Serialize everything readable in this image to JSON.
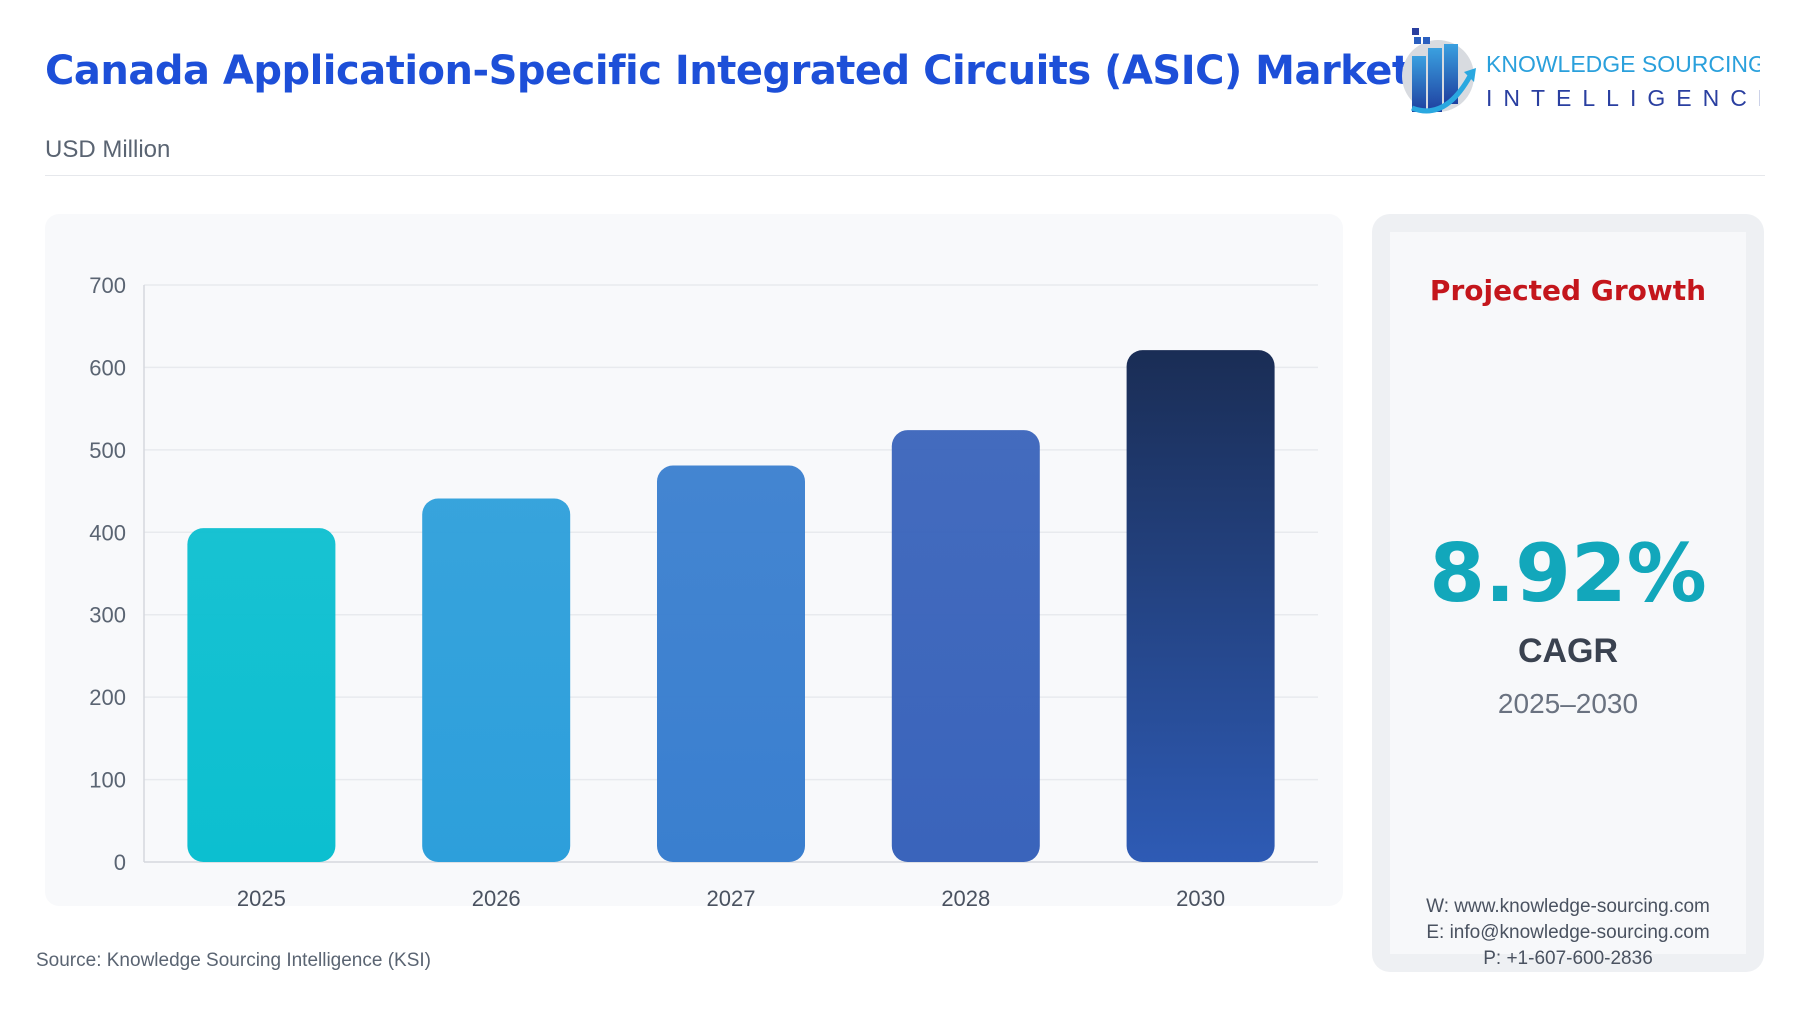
{
  "header": {
    "title": "Canada Application-Specific Integrated Circuits (ASIC) Market",
    "subtitle": "USD Million"
  },
  "logo": {
    "line1": "KNOWLEDGE SOURCING",
    "line2": "INTELLIGENCE"
  },
  "chart_data": {
    "type": "bar",
    "categories": [
      "2025",
      "2026",
      "2027",
      "2028",
      "2030"
    ],
    "values": [
      405,
      441,
      481,
      524,
      621
    ],
    "ylim": [
      0,
      700
    ],
    "yticks": [
      0,
      100,
      200,
      300,
      400,
      500,
      600,
      700
    ],
    "grid": true,
    "colors": [
      "#0cbfd0",
      "#2d9fdb",
      "#3a7fcf",
      "#3a64bb",
      "#1a2d55"
    ]
  },
  "growth": {
    "heading": "Projected Growth",
    "cagr": "8.92%",
    "cagr_label": "CAGR",
    "period": "2025–2030"
  },
  "contact": {
    "web": "W: www.knowledge-sourcing.com",
    "email": "E: info@knowledge-sourcing.com",
    "phone": "P: +1-607-600-2836"
  },
  "footer": {
    "source": "Source: Knowledge Sourcing Intelligence (KSI)"
  }
}
